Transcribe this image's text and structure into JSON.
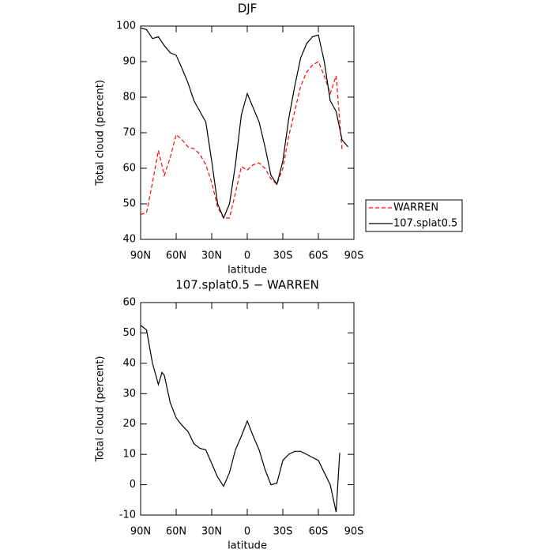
{
  "chart_data": [
    {
      "type": "line",
      "title": "DJF",
      "xlabel": "latitude",
      "ylabel": "Total cloud (percent)",
      "x": [
        90,
        85,
        80,
        75,
        70,
        65,
        60,
        55,
        50,
        45,
        40,
        35,
        30,
        25,
        20,
        15,
        10,
        5,
        0,
        -5,
        -10,
        -15,
        -20,
        -25,
        -30,
        -35,
        -40,
        -45,
        -50,
        -55,
        -60,
        -65,
        -70,
        -75,
        -80,
        -85
      ],
      "series": [
        {
          "name": "WARREN",
          "color": "#ff0000",
          "dash": true,
          "values": [
            47,
            47.5,
            56,
            65,
            58,
            63,
            69.5,
            68,
            66,
            65.5,
            64,
            61,
            56,
            49,
            46,
            46,
            53,
            60.5,
            59.5,
            61,
            61.5,
            60,
            57,
            55.5,
            60,
            69,
            76,
            83,
            87,
            89,
            90,
            86,
            81,
            86,
            65,
            null
          ]
        },
        {
          "name": "107.splat0.5",
          "color": "#000000",
          "dash": false,
          "values": [
            99.5,
            99,
            96.5,
            97,
            94.5,
            92.5,
            91.8,
            88,
            84,
            79,
            76,
            73,
            62,
            50,
            46,
            50,
            61,
            75,
            81,
            77,
            73,
            66,
            58,
            55.5,
            62,
            74,
            83,
            91,
            95,
            97,
            97.5,
            90,
            79,
            76,
            68,
            66
          ]
        }
      ],
      "xlim": [
        90,
        -90
      ],
      "xticks": [
        {
          "value": 90,
          "label": "90N"
        },
        {
          "value": 60,
          "label": "60N"
        },
        {
          "value": 30,
          "label": "30N"
        },
        0,
        {
          "value": -30,
          "label": "30S"
        },
        {
          "value": -60,
          "label": "60S"
        },
        {
          "value": -90,
          "label": "90S"
        }
      ],
      "ylim": [
        40,
        100
      ],
      "yticks": [
        40,
        50,
        60,
        70,
        80,
        90,
        100
      ],
      "legend": "right"
    },
    {
      "type": "line",
      "title": "107.splat0.5 − WARREN",
      "xlabel": "latitude",
      "ylabel": "Total cloud (percent)",
      "x": [
        90,
        85,
        80,
        75,
        72,
        70,
        65,
        60,
        55,
        50,
        45,
        40,
        35,
        30,
        25,
        20,
        15,
        10,
        5,
        0,
        -5,
        -10,
        -15,
        -20,
        -25,
        -30,
        -35,
        -40,
        -45,
        -50,
        -55,
        -60,
        -65,
        -70,
        -75,
        -78
      ],
      "series": [
        {
          "name": "107.splat0.5 − WARREN",
          "color": "#000000",
          "dash": false,
          "values": [
            52.5,
            51,
            40,
            33,
            37,
            36,
            27,
            22,
            19.5,
            17.5,
            13.5,
            12,
            11.5,
            7,
            2.5,
            -0.5,
            4,
            11.5,
            16,
            21,
            16,
            11.5,
            5,
            0,
            0.5,
            8,
            10,
            11,
            11,
            10,
            9,
            8,
            4,
            0,
            -9,
            10.5
          ]
        }
      ],
      "xlim": [
        90,
        -90
      ],
      "xticks": [
        {
          "value": 90,
          "label": "90N"
        },
        {
          "value": 60,
          "label": "60N"
        },
        {
          "value": 30,
          "label": "30N"
        },
        0,
        {
          "value": -30,
          "label": "30S"
        },
        {
          "value": -60,
          "label": "60S"
        },
        {
          "value": -90,
          "label": "90S"
        }
      ],
      "ylim": [
        -10,
        60
      ],
      "yticks": [
        -10,
        0,
        10,
        20,
        30,
        40,
        50,
        60
      ]
    }
  ]
}
